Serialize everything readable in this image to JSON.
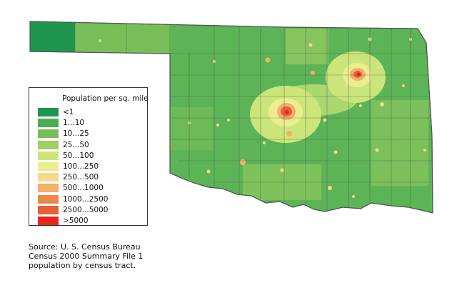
{
  "legend": {
    "title": "Population per sq. mile",
    "items": [
      {
        "label": "<1",
        "color": "#1e9650"
      },
      {
        "label": "1...10",
        "color": "#4aab52"
      },
      {
        "label": "10...25",
        "color": "#78be58"
      },
      {
        "label": "25...50",
        "color": "#a2cf62"
      },
      {
        "label": "50...100",
        "color": "#cce57a"
      },
      {
        "label": "100...250",
        "color": "#eaee90"
      },
      {
        "label": "250...500",
        "color": "#f7d98c"
      },
      {
        "label": "500...1000",
        "color": "#f3b068"
      },
      {
        "label": "1000...2500",
        "color": "#ee874e"
      },
      {
        "label": "2500...5000",
        "color": "#e85f3a"
      },
      {
        "label": ">5000",
        "color": "#e8261c"
      }
    ]
  },
  "source": {
    "lines": [
      "Source: U. S. Census Bureau",
      "Census 2000 Summary File 1",
      "population by census tract."
    ]
  },
  "map": {
    "state_fill": "#5db457",
    "border_color": "#4a5a4a"
  }
}
